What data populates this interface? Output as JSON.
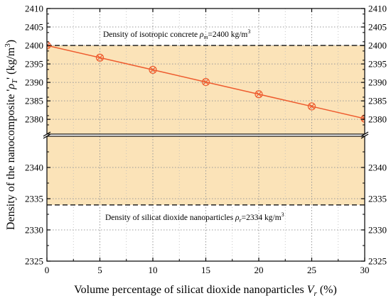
{
  "chart_data": {
    "type": "line",
    "xlabel": "Volume percentage of silicat dioxide nanoparticles V_r (%)",
    "ylabel": "Density of the nanocomposite ρ_T' (kg/m³)",
    "x_ticks": [
      "0",
      "5",
      "10",
      "15",
      "20",
      "25",
      "30"
    ],
    "y_ticks_upper": [
      "2380",
      "2385",
      "2390",
      "2395",
      "2400",
      "2405",
      "2410"
    ],
    "y_ticks_lower": [
      "2325",
      "2330",
      "2335",
      "2340"
    ],
    "xlim": [
      0,
      30
    ],
    "ylim_upper": [
      2376,
      2410
    ],
    "ylim_lower": [
      2325,
      2345
    ],
    "axis_break": true,
    "grid": true,
    "series": [
      {
        "x": [
          0,
          5,
          10,
          15,
          20,
          25,
          30
        ],
        "values": [
          2400,
          2396.7,
          2393.4,
          2390.1,
          2386.8,
          2383.5,
          2380.2
        ],
        "color": "#ee5b2e",
        "marker": "circle-x"
      }
    ],
    "reference_lines": [
      {
        "value": 2400,
        "label": "Density of isotropic concrete ρ_m=2400 kg/m³"
      },
      {
        "value": 2334,
        "label": "Density of silicat dioxide nanoparticles ρ_r=2334 kg/m³"
      }
    ],
    "band": {
      "from": 2334,
      "to": 2400,
      "color": "#fbe3b8"
    }
  }
}
